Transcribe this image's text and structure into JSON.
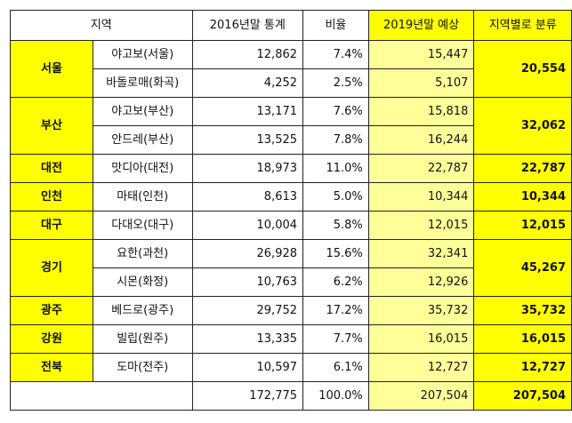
{
  "headers": {
    "region": "지역",
    "stats_2016": "2016년말 통계",
    "ratio": "비율",
    "forecast_2019": "2019년말 예상",
    "by_region": "지역별로 분류"
  },
  "groups": [
    {
      "region": "서울",
      "total": "20,554",
      "rows": [
        {
          "name": "야고보(서울)",
          "stats": "12,862",
          "ratio": "7.4%",
          "forecast": "15,447"
        },
        {
          "name": "바돌로매(화곡)",
          "stats": "4,252",
          "ratio": "2.5%",
          "forecast": "5,107"
        }
      ]
    },
    {
      "region": "부산",
      "total": "32,062",
      "rows": [
        {
          "name": "야고보(부산)",
          "stats": "13,171",
          "ratio": "7.6%",
          "forecast": "15,818"
        },
        {
          "name": "안드레(부산)",
          "stats": "13,525",
          "ratio": "7.8%",
          "forecast": "16,244"
        }
      ]
    },
    {
      "region": "대전",
      "total": "22,787",
      "rows": [
        {
          "name": "맛디아(대전)",
          "stats": "18,973",
          "ratio": "11.0%",
          "forecast": "22,787"
        }
      ]
    },
    {
      "region": "인천",
      "total": "10,344",
      "rows": [
        {
          "name": "마태(인천)",
          "stats": "8,613",
          "ratio": "5.0%",
          "forecast": "10,344"
        }
      ]
    },
    {
      "region": "대구",
      "total": "12,015",
      "rows": [
        {
          "name": "다대오(대구)",
          "stats": "10,004",
          "ratio": "5.8%",
          "forecast": "12,015"
        }
      ]
    },
    {
      "region": "경기",
      "total": "45,267",
      "rows": [
        {
          "name": "요한(과천)",
          "stats": "26,928",
          "ratio": "15.6%",
          "forecast": "32,341"
        },
        {
          "name": "시몬(화정)",
          "stats": "10,763",
          "ratio": "6.2%",
          "forecast": "12,926"
        }
      ]
    },
    {
      "region": "광주",
      "total": "35,732",
      "rows": [
        {
          "name": "베드로(광주)",
          "stats": "29,752",
          "ratio": "17.2%",
          "forecast": "35,732"
        }
      ]
    },
    {
      "region": "강원",
      "total": "16,015",
      "rows": [
        {
          "name": "빌립(원주)",
          "stats": "13,335",
          "ratio": "7.7%",
          "forecast": "16,015"
        }
      ]
    },
    {
      "region": "전북",
      "total": "12,727",
      "rows": [
        {
          "name": "도마(전주)",
          "stats": "10,597",
          "ratio": "6.1%",
          "forecast": "12,727"
        }
      ]
    }
  ],
  "totals": {
    "stats": "172,775",
    "ratio": "100.0%",
    "forecast": "207,504",
    "by_region": "207,504"
  },
  "colors": {
    "region_fill": "#ffff00",
    "forecast_fill": "#ffff99",
    "by_region_fill": "#ffff00"
  }
}
